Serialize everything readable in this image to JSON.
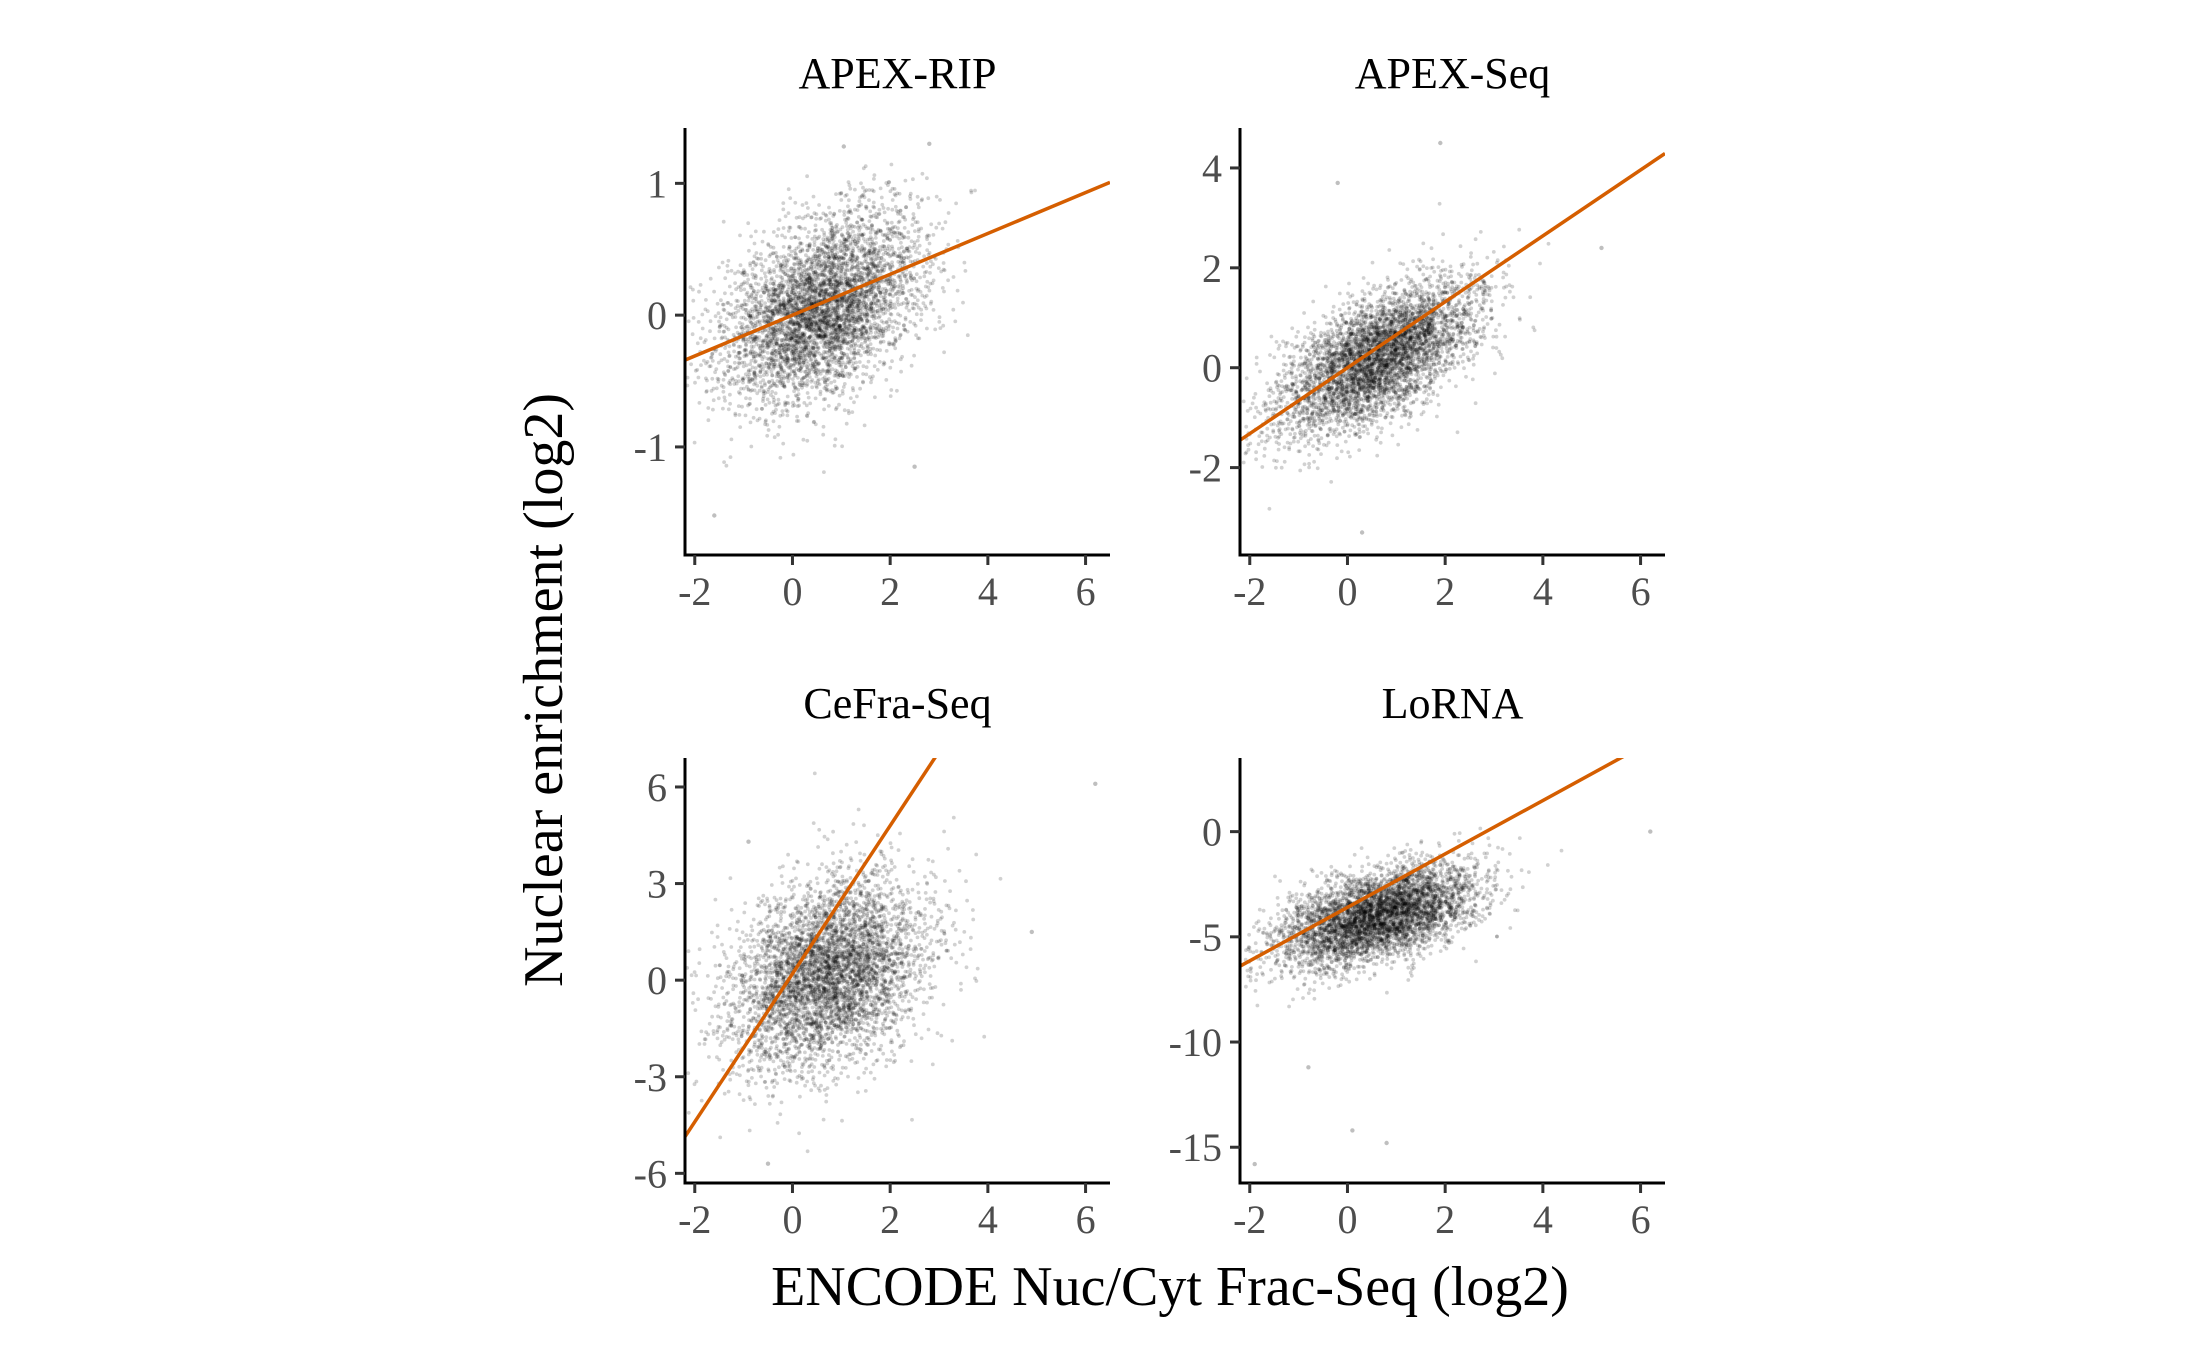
{
  "chart_data": {
    "xlabel": "ENCODE Nuc/Cyt Frac-Seq (log2)",
    "ylabel": "Nuclear enrichment (log2)",
    "colors": {
      "points": "#000000",
      "fit_line": "#d55e00"
    },
    "panels": [
      {
        "type": "scatter",
        "title": "APEX-RIP",
        "xlim": [
          -2.2,
          6.5
        ],
        "ylim": [
          -1.82,
          1.42
        ],
        "xticks": [
          -2,
          0,
          2,
          4,
          6
        ],
        "xtick_labels": [
          "-2",
          "0",
          "2",
          "4",
          "6"
        ],
        "yticks": [
          -1,
          0,
          1
        ],
        "ytick_labels": [
          "-1",
          "0",
          "1"
        ],
        "fit_line": {
          "intercept": 0.0,
          "slope": 0.155
        },
        "point_cloud": {
          "n": 4500,
          "x_mean": 0.6,
          "x_sd": 1.0,
          "y_mean": 0.05,
          "y_sd": 0.35,
          "corr": 0.4
        },
        "extreme_points": [
          {
            "x": 1.05,
            "y": 1.28
          },
          {
            "x": 2.8,
            "y": 1.3
          },
          {
            "x": -1.6,
            "y": -1.52
          },
          {
            "x": 2.5,
            "y": -1.15
          }
        ]
      },
      {
        "type": "scatter",
        "title": "APEX-Seq",
        "xlim": [
          -2.2,
          6.5
        ],
        "ylim": [
          -3.75,
          4.8
        ],
        "xticks": [
          -2,
          0,
          2,
          4,
          6
        ],
        "xtick_labels": [
          "-2",
          "0",
          "2",
          "4",
          "6"
        ],
        "yticks": [
          -2,
          0,
          2,
          4
        ],
        "ytick_labels": [
          "-2",
          "0",
          "2",
          "4"
        ],
        "fit_line": {
          "intercept": 0.0,
          "slope": 0.66
        },
        "point_cloud": {
          "n": 4500,
          "x_mean": 0.6,
          "x_sd": 1.0,
          "y_mean": 0.2,
          "y_sd": 0.75,
          "corr": 0.6
        },
        "extreme_points": [
          {
            "x": 1.9,
            "y": 4.5
          },
          {
            "x": -0.2,
            "y": 3.7
          },
          {
            "x": 0.3,
            "y": -3.3
          },
          {
            "x": 5.2,
            "y": 2.4
          }
        ]
      },
      {
        "type": "scatter",
        "title": "CeFra-Seq",
        "xlim": [
          -2.2,
          6.5
        ],
        "ylim": [
          -6.3,
          6.9
        ],
        "xticks": [
          -2,
          0,
          2,
          4,
          6
        ],
        "xtick_labels": [
          "-2",
          "0",
          "2",
          "4",
          "6"
        ],
        "yticks": [
          -6,
          -3,
          0,
          3,
          6
        ],
        "ytick_labels": [
          "-6",
          "-3",
          "0",
          "3",
          "6"
        ],
        "fit_line": {
          "intercept": 0.2,
          "slope": 2.3
        },
        "point_cloud": {
          "n": 4500,
          "x_mean": 0.7,
          "x_sd": 1.0,
          "y_mean": 0.2,
          "y_sd": 1.5,
          "corr": 0.3
        },
        "extreme_points": [
          {
            "x": 6.2,
            "y": 6.1
          },
          {
            "x": -0.5,
            "y": -5.7
          },
          {
            "x": 4.9,
            "y": 1.5
          },
          {
            "x": -0.9,
            "y": 4.3
          }
        ]
      },
      {
        "type": "scatter",
        "title": "LoRNA",
        "xlim": [
          -2.2,
          6.5
        ],
        "ylim": [
          -16.7,
          3.5
        ],
        "xticks": [
          -2,
          0,
          2,
          4,
          6
        ],
        "xtick_labels": [
          "-2",
          "0",
          "2",
          "4",
          "6"
        ],
        "yticks": [
          -15,
          -10,
          -5,
          0
        ],
        "ytick_labels": [
          "-15",
          "-10",
          "-5",
          "0"
        ],
        "fit_line": {
          "intercept": -3.6,
          "slope": 1.27
        },
        "point_cloud": {
          "n": 4500,
          "x_mean": 0.6,
          "x_sd": 1.0,
          "y_mean": -4.0,
          "y_sd": 1.2,
          "corr": 0.5
        },
        "extreme_points": [
          {
            "x": 6.2,
            "y": 0.0
          },
          {
            "x": -1.9,
            "y": -15.8
          },
          {
            "x": 0.1,
            "y": -14.2
          },
          {
            "x": 0.8,
            "y": -14.8
          },
          {
            "x": -0.8,
            "y": -11.2
          }
        ]
      }
    ]
  }
}
